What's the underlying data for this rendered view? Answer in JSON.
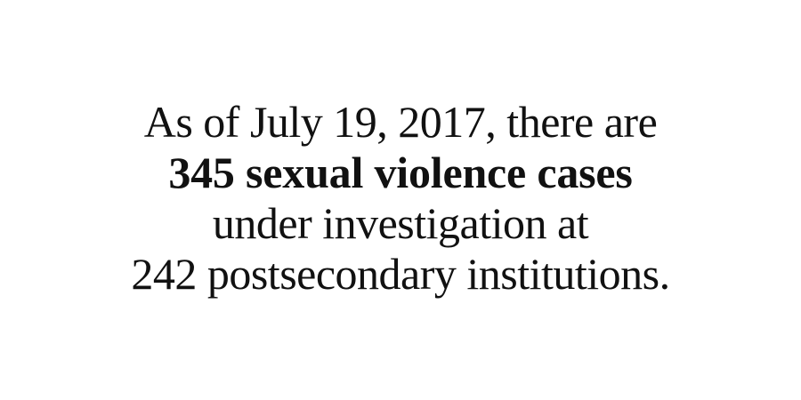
{
  "statement": {
    "line1": "As of July 19, 2017, there are",
    "line2": "345 sexual violence cases",
    "line3": "under investigation at",
    "line4": "242 postsecondary institutions."
  },
  "colors": {
    "background": "#ffffff",
    "text": "#111111"
  }
}
